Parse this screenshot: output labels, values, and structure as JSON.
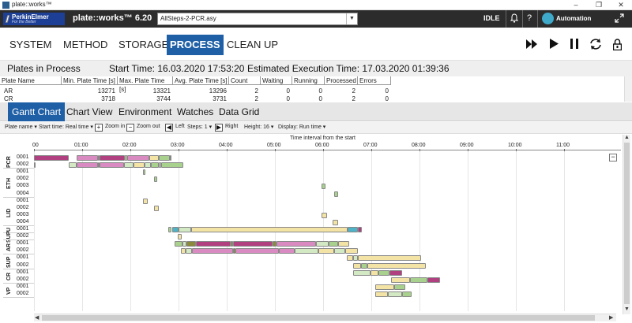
{
  "window": {
    "title": "plate::works™",
    "minimize": "–",
    "maximize": "❐",
    "close": "✕"
  },
  "header": {
    "brand_name": "PerkinElmer",
    "brand_tagline": "For the Better",
    "product": "plate::works™ 6.20",
    "file": "AllSteps-2-PCR.asy",
    "status": "IDLE",
    "bell_icon": "bell-icon",
    "help": "?",
    "automation": "Automation",
    "expand_icon": "expand-icon"
  },
  "menu": [
    "SYSTEM",
    "METHOD",
    "STORAGE",
    "PROCESS",
    "CLEAN UP"
  ],
  "active_menu": "PROCESS",
  "controls": {
    "fast_forward": "⏩",
    "play": "▶",
    "pause": "⏸",
    "refresh": "⟳",
    "lock": "🔒"
  },
  "plates_in_process": {
    "title": "Plates in Process",
    "start_time": "Start Time: 16.03.2020 17:53:20",
    "estimated": "Estimated Execution Time: 17.03.2020 01:39:36",
    "columns": [
      "Plate Name",
      "Min. Plate Time [s]",
      "Max. Plate Time [s]",
      "Avg. Plate Time [s]",
      "Count",
      "Waiting",
      "Running",
      "Processed",
      "Errors"
    ],
    "rows": [
      [
        "AR",
        "13271",
        "13321",
        "13296",
        "2",
        "0",
        "0",
        "2",
        "0"
      ],
      [
        "CR",
        "3718",
        "3744",
        "3731",
        "2",
        "0",
        "0",
        "2",
        "0"
      ]
    ]
  },
  "tabs": [
    "Gantt Chart",
    "Chart View",
    "Environment",
    "Watches",
    "Data Grid"
  ],
  "active_tab": "Gantt Chart",
  "toolbar": {
    "plate_name": "Plate name ▾",
    "start_time": "Start time: Real time ▾",
    "zoom_in": "Zoom in",
    "zoom_out": "Zoom out",
    "left": "Left",
    "steps": "Steps: 1 ▾",
    "right": "Right",
    "height": "Height: 16 ▾",
    "display": "Display: Run time ▾"
  },
  "gantt": {
    "axis_title": "Time interval from the start",
    "ticks": [
      "00",
      "01:00",
      "02:00",
      "03:00",
      "04:00",
      "05:00",
      "06:00",
      "07:00",
      "08:00",
      "09:00",
      "10:00",
      "11:00"
    ],
    "groups": [
      {
        "name": "PCR",
        "plates": [
          "0001",
          "0002"
        ]
      },
      {
        "name": "ETH",
        "plates": [
          "0001",
          "0002",
          "0003",
          "0004"
        ]
      },
      {
        "name": "LID",
        "plates": [
          "0001",
          "0002",
          "0003",
          "0004"
        ]
      },
      {
        "name": "U",
        "plates": [
          "0001"
        ]
      },
      {
        "name": "SUP",
        "plates": [
          "0002"
        ]
      },
      {
        "name": "AR",
        "plates": [
          "0001",
          "0002"
        ]
      },
      {
        "name": "SUP",
        "plates": [
          "0001",
          "0002"
        ]
      },
      {
        "name": "CR",
        "plates": [
          "0001",
          "0002"
        ]
      },
      {
        "name": "VP",
        "plates": [
          "0001",
          "0002"
        ]
      }
    ],
    "colors": {
      "pink": "#d98bc1",
      "magenta": "#b0407f",
      "yellow": "#f3e4a6",
      "green": "#a9d18e",
      "lightgreen": "#d3e9c4",
      "teal": "#4fb3c8",
      "olive": "#8a8a3a"
    }
  }
}
